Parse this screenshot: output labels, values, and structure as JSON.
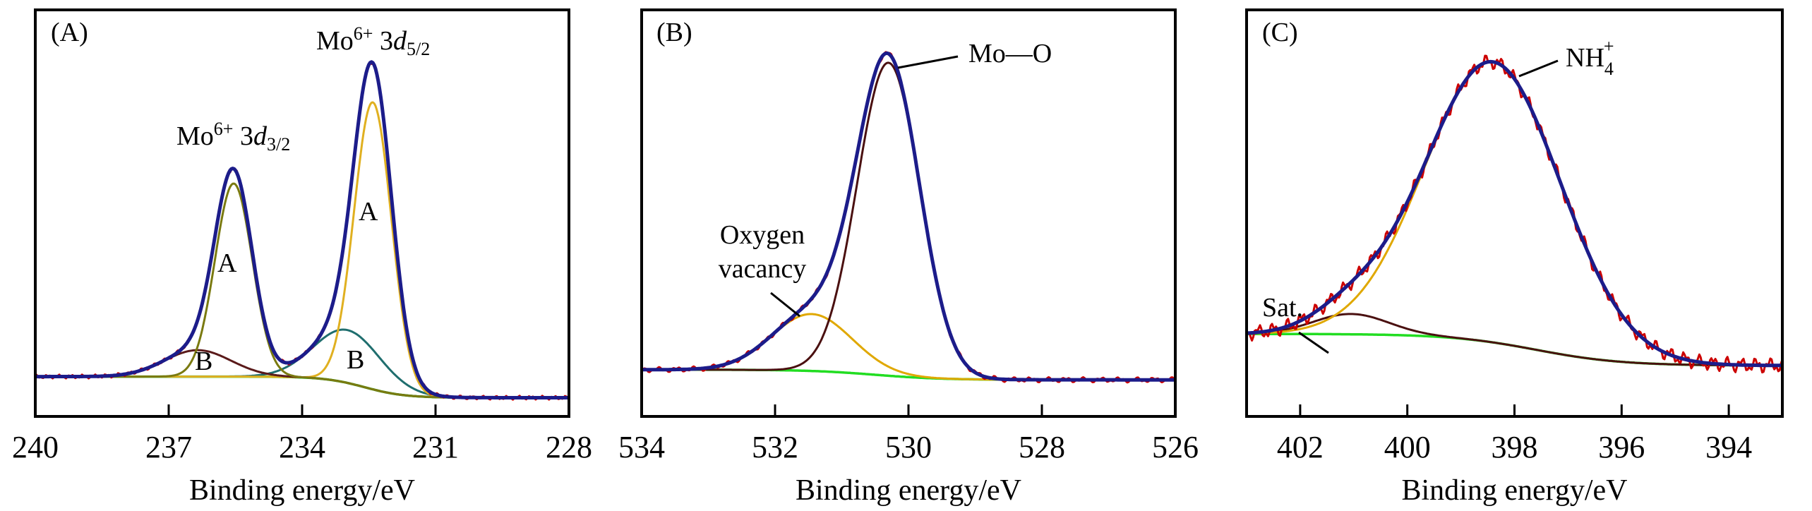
{
  "chart_data": [
    {
      "type": "line",
      "panel_label": "(A)",
      "xlabel": "Binding energy/eV",
      "ylabel": "",
      "xlim": [
        240,
        228
      ],
      "ylim": [
        0,
        100
      ],
      "xticks": [
        240,
        237,
        234,
        231,
        228
      ],
      "background": {
        "high": 9.8,
        "low": 4.6,
        "center": 232.6,
        "width": 0.45,
        "color": "#22dd22"
      },
      "components": [
        {
          "name": "A (3d3/2)",
          "center": 235.54,
          "amplitude": 47.5,
          "sigma": 0.42,
          "color": "#7a7a10"
        },
        {
          "name": "B (3d3/2)",
          "center": 236.35,
          "amplitude": 6.5,
          "sigma": 0.75,
          "color": "#5a1a1a"
        },
        {
          "name": "A (3d5/2)",
          "center": 232.41,
          "amplitude": 70.6,
          "sigma": 0.42,
          "color": "#e0b020"
        },
        {
          "name": "B (3d5/2)",
          "center": 232.98,
          "amplitude": 13.0,
          "sigma": 0.75,
          "color": "#1f6e6e"
        }
      ],
      "series": [
        {
          "name": "raw",
          "color": "#cc0000"
        },
        {
          "name": "fit envelope",
          "color": "#1c1c8a"
        }
      ],
      "raw_noise": 0.3,
      "annotations": {
        "peak_3d32": [
          "Mo",
          "6+",
          " 3",
          "d",
          "3/2"
        ],
        "peak_3d52": [
          "Mo",
          "6+",
          " 3",
          "d",
          "5/2"
        ],
        "a_left": "A",
        "a_right": "A",
        "b_left": "B",
        "b_right": "B"
      }
    },
    {
      "type": "line",
      "panel_label": "(B)",
      "xlabel": "Binding energy/eV",
      "ylabel": "",
      "xlim": [
        534,
        526
      ],
      "ylim": [
        0,
        100
      ],
      "xticks": [
        534,
        532,
        530,
        528,
        526
      ],
      "background": {
        "high": 11.5,
        "low": 9.0,
        "center": 530.5,
        "width": 0.5,
        "color": "#22dd22"
      },
      "components": [
        {
          "name": "Mo—O",
          "center": 530.3,
          "amplitude": 77,
          "sigma": 0.47,
          "color": "#4a1010"
        },
        {
          "name": "Oxygen vacancy",
          "center": 531.45,
          "amplitude": 14,
          "sigma": 0.6,
          "color": "#e0a800"
        }
      ],
      "series": [
        {
          "name": "raw",
          "color": "#cc0000"
        },
        {
          "name": "fit envelope",
          "color": "#1c1c8a"
        }
      ],
      "raw_noise": 0.4,
      "annotations": {
        "mo_o": "Mo—O",
        "vacancy_line1": "Oxygen",
        "vacancy_line2": "vacancy"
      }
    },
    {
      "type": "line",
      "panel_label": "(C)",
      "xlabel": "Binding energy/eV",
      "ylabel": "",
      "xlim": [
        403,
        393
      ],
      "ylim": [
        0,
        100
      ],
      "xticks": [
        402,
        400,
        398,
        396,
        394
      ],
      "background": {
        "high": 20.3,
        "low": 12.5,
        "center": 397.6,
        "width": 0.8,
        "color": "#22dd22"
      },
      "components": [
        {
          "name": "NH4+",
          "center": 398.4,
          "amplitude": 69,
          "sigma": 1.27,
          "color": "#e0a800"
        },
        {
          "name": "Sat.",
          "center": 401.05,
          "amplitude": 5,
          "sigma": 0.7,
          "color": "#4a1010"
        }
      ],
      "series": [
        {
          "name": "raw",
          "color": "#cc0000"
        },
        {
          "name": "fit envelope",
          "color": "#1c1c8a"
        }
      ],
      "raw_noise": 1.2,
      "annotations": {
        "nh4": [
          "NH",
          "4",
          "+"
        ],
        "sat": "Sat."
      }
    }
  ]
}
